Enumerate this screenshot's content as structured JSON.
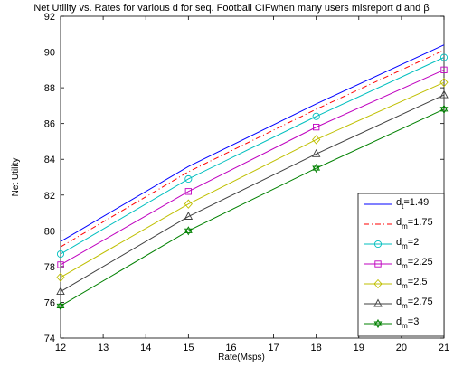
{
  "chart_data": {
    "type": "line",
    "title": "Net Utility vs. Rates for various d for seq. Football CIFwhen many users misreport d and β",
    "xlabel": "Rate(Msps)",
    "ylabel": "Net Utility",
    "xlim": [
      12,
      21
    ],
    "ylim": [
      74,
      92
    ],
    "xticks": [
      "12",
      "13",
      "14",
      "15",
      "16",
      "17",
      "18",
      "19",
      "20",
      "21"
    ],
    "yticks": [
      "74",
      "76",
      "78",
      "80",
      "82",
      "84",
      "86",
      "88",
      "90",
      "92"
    ],
    "grid": true,
    "legend_position": "bottom-right",
    "x": [
      12,
      15,
      18,
      21
    ],
    "series": [
      {
        "name": "d_t=1.49",
        "label_base": "d",
        "label_sub": "t",
        "label_rest": "=1.49",
        "values": [
          79.4,
          83.6,
          87.1,
          90.4
        ],
        "color": "#0000ff",
        "dash": "",
        "marker": "none"
      },
      {
        "name": "d_m=1.75",
        "label_base": "d",
        "label_sub": "m",
        "label_rest": "=1.75",
        "values": [
          79.1,
          83.3,
          86.8,
          90.1
        ],
        "color": "#ff0000",
        "dash": "6,3,1,3",
        "marker": "none"
      },
      {
        "name": "d_m=2",
        "label_base": "d",
        "label_sub": "m",
        "label_rest": "=2",
        "values": [
          78.7,
          82.9,
          86.4,
          89.7
        ],
        "color": "#00bfbf",
        "dash": "",
        "marker": "circle"
      },
      {
        "name": "d_m=2.25",
        "label_base": "d",
        "label_sub": "m",
        "label_rest": "=2.25",
        "values": [
          78.1,
          82.2,
          85.8,
          89.0
        ],
        "color": "#bf00bf",
        "dash": "",
        "marker": "square"
      },
      {
        "name": "d_m=2.5",
        "label_base": "d",
        "label_sub": "m",
        "label_rest": "=2.5",
        "values": [
          77.4,
          81.5,
          85.1,
          88.3
        ],
        "color": "#bfbf00",
        "dash": "",
        "marker": "diamond"
      },
      {
        "name": "d_m=2.75",
        "label_base": "d",
        "label_sub": "m",
        "label_rest": "=2.75",
        "values": [
          76.6,
          80.8,
          84.3,
          87.6
        ],
        "color": "#3f3f3f",
        "dash": "",
        "marker": "triangle"
      },
      {
        "name": "d_m=3",
        "label_base": "d",
        "label_sub": "m",
        "label_rest": "=3",
        "values": [
          75.8,
          80.0,
          83.5,
          86.8
        ],
        "color": "#008000",
        "dash": "",
        "marker": "hexagram"
      }
    ]
  }
}
